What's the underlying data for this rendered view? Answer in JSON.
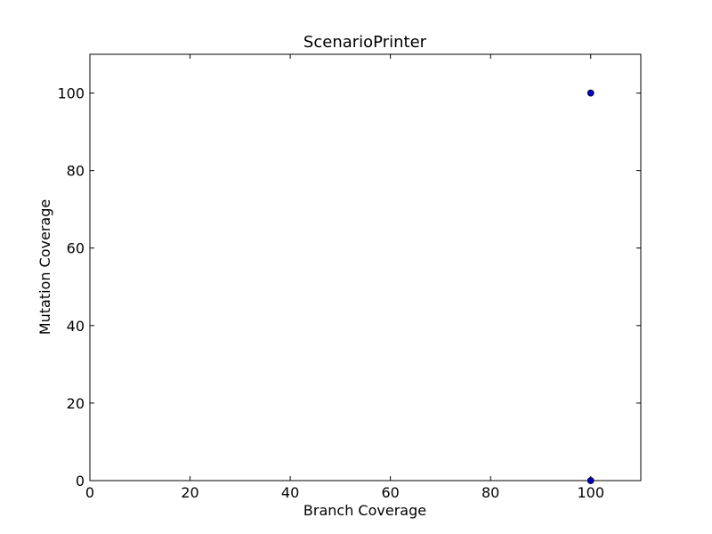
{
  "chart_data": {
    "type": "scatter",
    "title": "ScenarioPrinter",
    "xlabel": "Branch Coverage",
    "ylabel": "Mutation Coverage",
    "xlim": [
      0,
      110
    ],
    "ylim": [
      0,
      110
    ],
    "xticks": [
      0,
      20,
      40,
      60,
      80,
      100
    ],
    "yticks": [
      0,
      20,
      40,
      60,
      80,
      100
    ],
    "grid": false,
    "marker_color": "#0000bf",
    "points": [
      {
        "x": 100,
        "y": 100
      },
      {
        "x": 100,
        "y": 0
      }
    ]
  }
}
